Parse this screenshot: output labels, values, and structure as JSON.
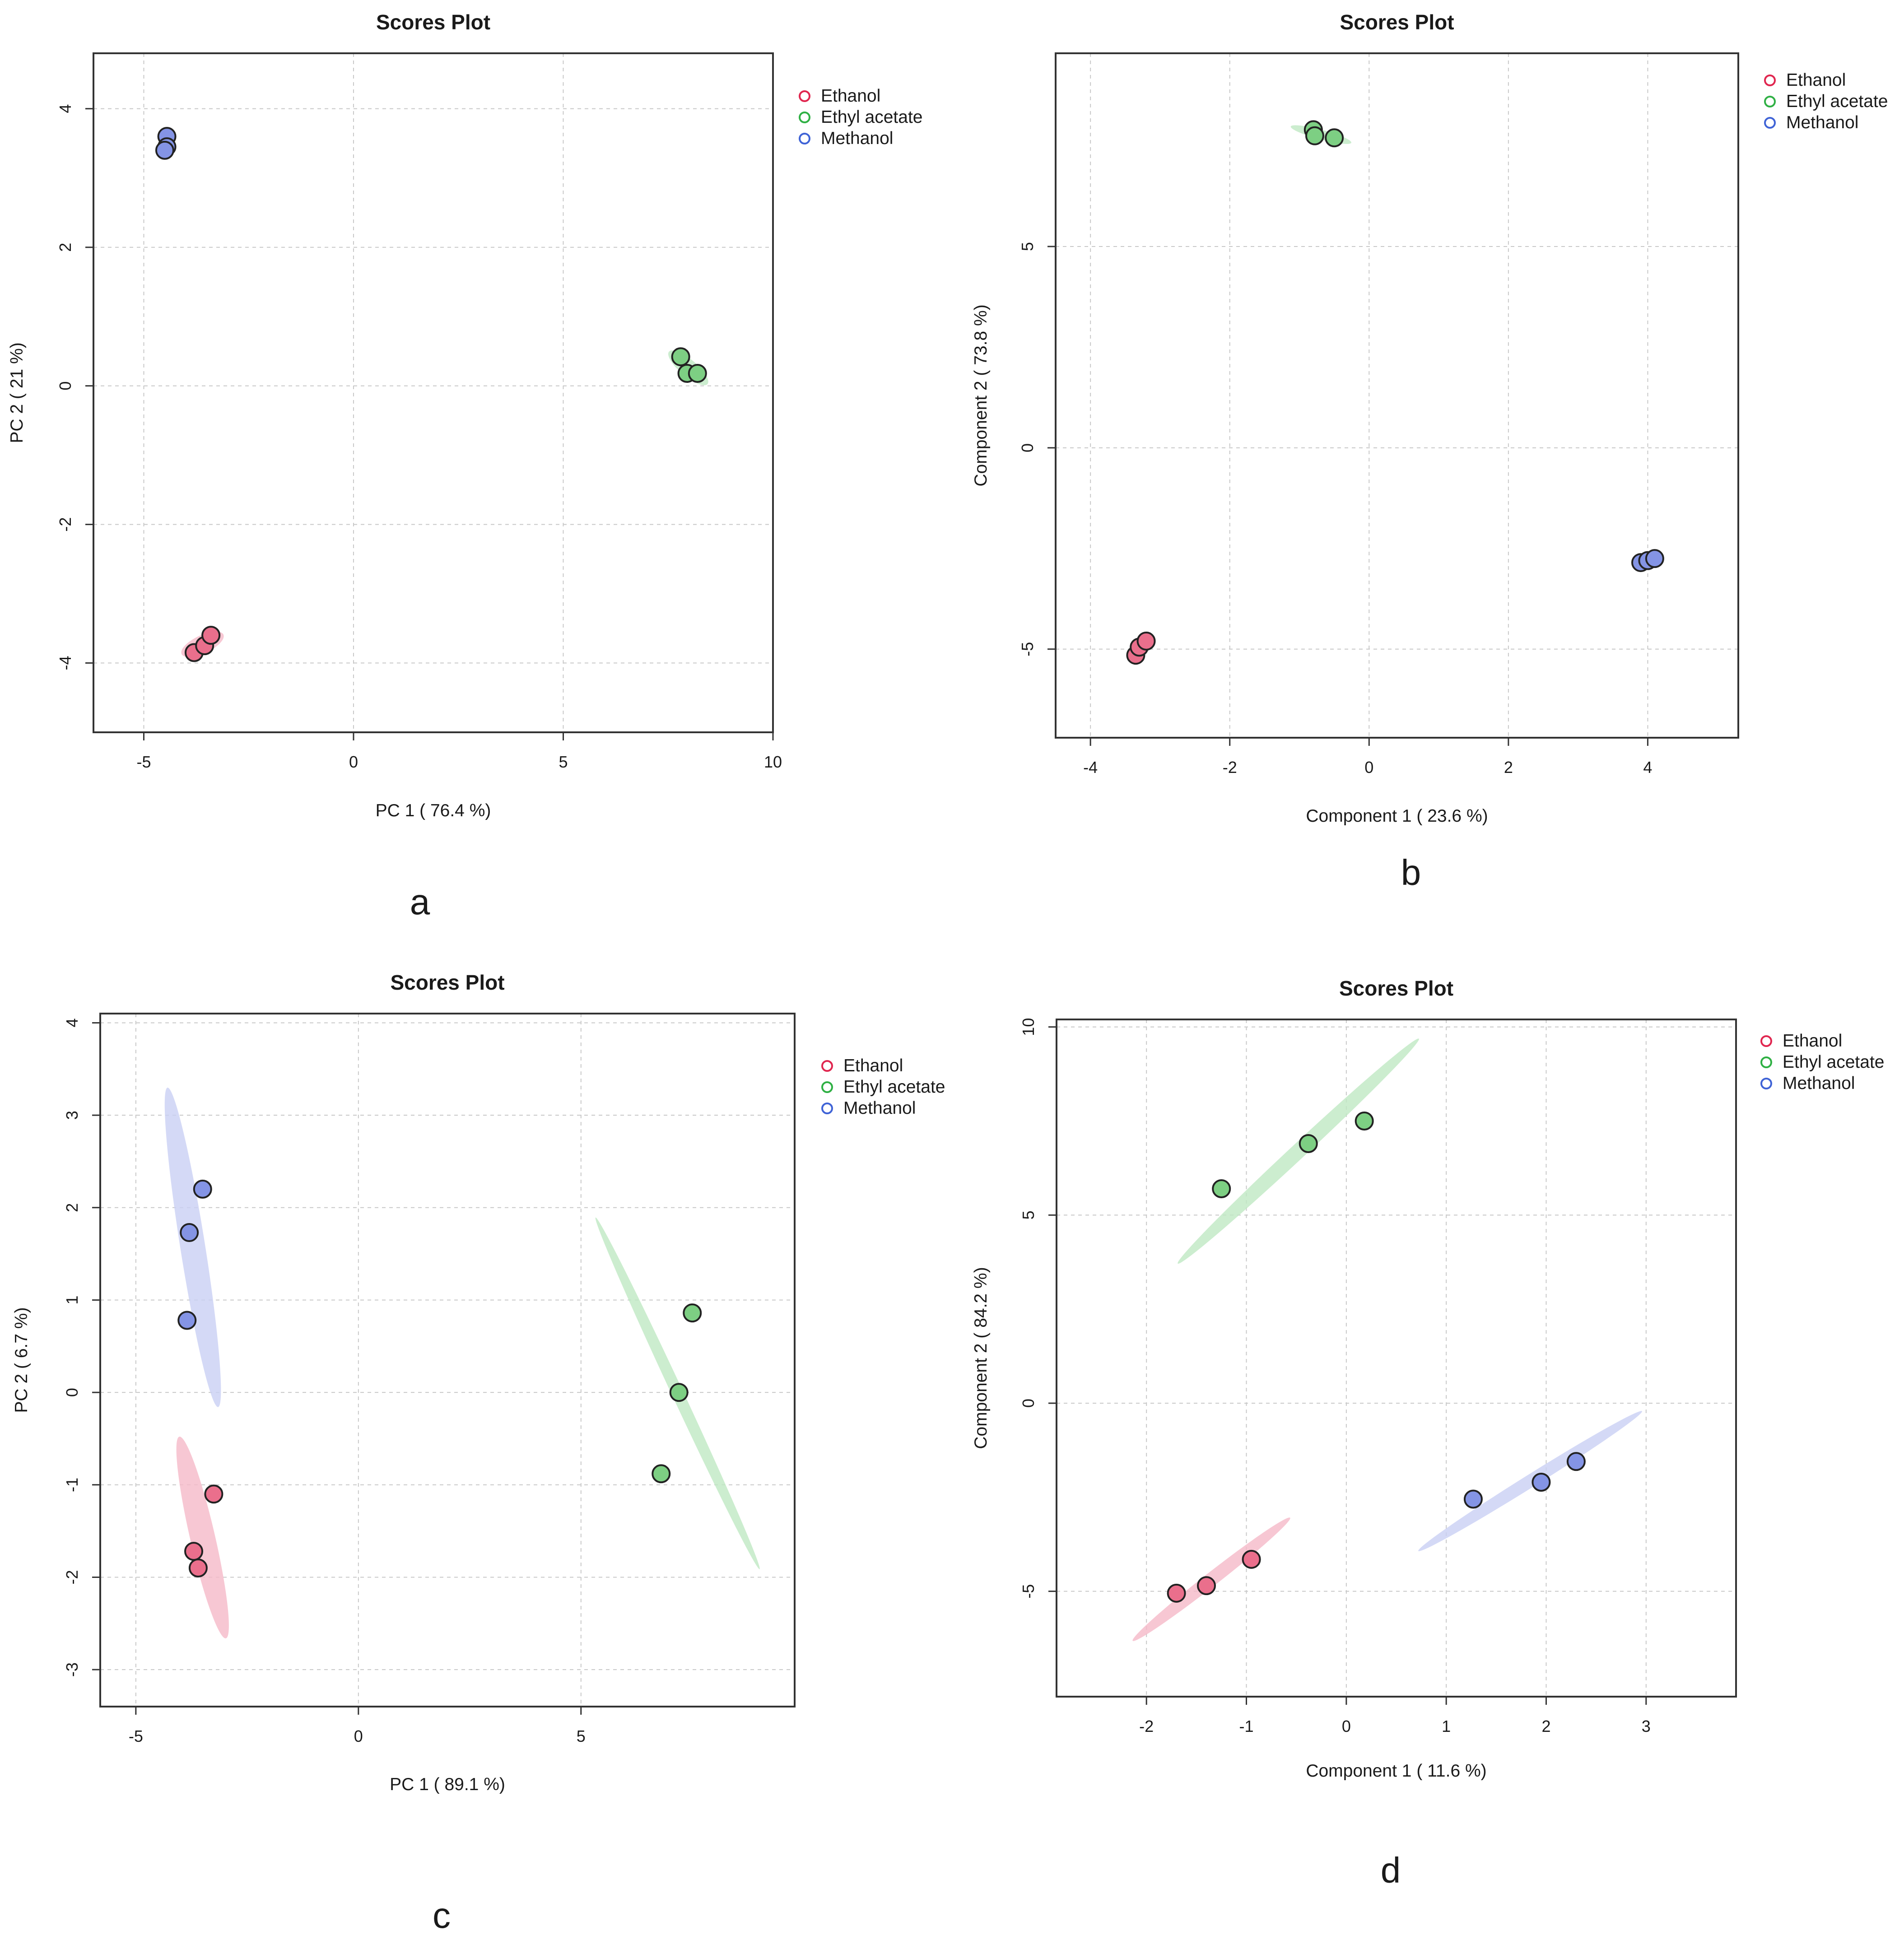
{
  "figure": {
    "panel_letters": [
      "a",
      "b",
      "c",
      "d"
    ]
  },
  "colors": {
    "Ethanol": "#ea6f8c",
    "Ethyl acetate": "#7dcf83",
    "Methanol": "#8494e5",
    "Ethanol_light": "#f5b9c8",
    "Ethyl acetate_light": "#bfe8c3",
    "Methanol_light": "#c9d0f4",
    "Ethanol_legend": "#e0264f",
    "Ethyl acetate_legend": "#2fb044",
    "Methanol_legend": "#3f63d6"
  },
  "chart_data": [
    {
      "type": "scatter",
      "title": "Scores Plot",
      "xlabel": "PC 1 ( 76.4 %)",
      "ylabel": "PC 2 ( 21 %)",
      "xlim": [
        -6.2,
        10.0
      ],
      "ylim": [
        -5.0,
        4.8
      ],
      "xticks": [
        -5,
        0,
        5,
        10
      ],
      "yticks": [
        -4,
        -2,
        0,
        2,
        4
      ],
      "legend": [
        "Ethanol",
        "Ethyl acetate",
        "Methanol"
      ],
      "legend_position": "right-top",
      "series": [
        {
          "name": "Ethanol",
          "points": [
            [
              -3.8,
              -3.85
            ],
            [
              -3.55,
              -3.75
            ],
            [
              -3.4,
              -3.6
            ]
          ],
          "ellipse": {
            "cx": -3.6,
            "cy": -3.73,
            "rx": 0.55,
            "ry": 0.13,
            "angle": 25
          }
        },
        {
          "name": "Ethyl acetate",
          "points": [
            [
              7.8,
              0.42
            ],
            [
              7.95,
              0.18
            ],
            [
              8.2,
              0.18
            ]
          ],
          "ellipse": {
            "cx": 7.98,
            "cy": 0.26,
            "rx": 0.6,
            "ry": 0.12,
            "angle": -40
          }
        },
        {
          "name": "Methanol",
          "points": [
            [
              -4.45,
              3.6
            ],
            [
              -4.45,
              3.45
            ],
            [
              -4.5,
              3.4
            ]
          ],
          "ellipse": {
            "cx": -4.47,
            "cy": 3.48,
            "rx": 0.2,
            "ry": 0.05,
            "angle": 80
          }
        }
      ]
    },
    {
      "type": "scatter",
      "title": "Scores Plot",
      "xlabel": "Component 1 ( 23.6 %)",
      "ylabel": "Component 2 ( 73.8 %)",
      "xlim": [
        -4.5,
        5.3
      ],
      "ylim": [
        -7.2,
        9.8
      ],
      "xticks": [
        -4,
        -2,
        0,
        2,
        4
      ],
      "yticks": [
        -5,
        0,
        5
      ],
      "legend": [
        "Ethanol",
        "Ethyl acetate",
        "Methanol"
      ],
      "legend_position": "right-top",
      "series": [
        {
          "name": "Ethanol",
          "points": [
            [
              -3.35,
              -5.15
            ],
            [
              -3.3,
              -4.95
            ],
            [
              -3.2,
              -4.8
            ]
          ],
          "ellipse": {
            "cx": -3.28,
            "cy": -4.97,
            "rx": 0.25,
            "ry": 0.08,
            "angle": 45
          }
        },
        {
          "name": "Ethyl acetate",
          "points": [
            [
              -0.8,
              7.9
            ],
            [
              -0.78,
              7.75
            ],
            [
              -0.5,
              7.7
            ]
          ],
          "ellipse": {
            "cx": -0.69,
            "cy": 7.78,
            "rx": 0.45,
            "ry": 0.12,
            "angle": -15
          }
        },
        {
          "name": "Methanol",
          "points": [
            [
              3.9,
              -2.85
            ],
            [
              4.0,
              -2.8
            ],
            [
              4.1,
              -2.75
            ]
          ],
          "ellipse": {
            "cx": 4.0,
            "cy": -2.8,
            "rx": 0.2,
            "ry": 0.05,
            "angle": 10
          }
        }
      ]
    },
    {
      "type": "scatter",
      "title": "Scores Plot",
      "xlabel": "PC 1 ( 89.1 %)",
      "ylabel": "PC 2 ( 6.7 %)",
      "xlim": [
        -5.8,
        9.8
      ],
      "ylim": [
        -3.4,
        4.1
      ],
      "xticks": [
        -5,
        0,
        5
      ],
      "yticks": [
        -3,
        -2,
        -1,
        0,
        1,
        2,
        3,
        4
      ],
      "legend": [
        "Ethanol",
        "Ethyl acetate",
        "Methanol"
      ],
      "legend_position": "right-top",
      "series": [
        {
          "name": "Ethanol",
          "points": [
            [
              -3.25,
              -1.1
            ],
            [
              -3.7,
              -1.72
            ],
            [
              -3.6,
              -1.9
            ]
          ],
          "ellipse": {
            "cx": -3.5,
            "cy": -1.57,
            "rx": 0.28,
            "ry": 1.12,
            "angle": 13
          }
        },
        {
          "name": "Ethyl acetate",
          "points": [
            [
              7.5,
              0.86
            ],
            [
              7.2,
              0.0
            ],
            [
              6.8,
              -0.88
            ]
          ],
          "ellipse": {
            "cx": 7.17,
            "cy": -0.01,
            "rx": 0.13,
            "ry": 2.1,
            "angle": 25
          }
        },
        {
          "name": "Methanol",
          "points": [
            [
              -3.5,
              2.2
            ],
            [
              -3.8,
              1.73
            ],
            [
              -3.85,
              0.78
            ]
          ],
          "ellipse": {
            "cx": -3.72,
            "cy": 1.57,
            "rx": 0.28,
            "ry": 1.75,
            "angle": 9
          }
        }
      ]
    },
    {
      "type": "scatter",
      "title": "Scores Plot",
      "xlabel": "Component 1 ( 11.6 %)",
      "ylabel": "Component 2 ( 84.2 %)",
      "xlim": [
        -2.9,
        3.9
      ],
      "ylim": [
        -7.8,
        10.2
      ],
      "xticks": [
        -2,
        -1,
        0,
        1,
        2,
        3
      ],
      "yticks": [
        -5,
        0,
        5,
        10
      ],
      "legend": [
        "Ethanol",
        "Ethyl acetate",
        "Methanol"
      ],
      "legend_position": "right-top",
      "series": [
        {
          "name": "Ethanol",
          "points": [
            [
              -1.7,
              -5.05
            ],
            [
              -1.4,
              -4.85
            ],
            [
              -0.95,
              -4.15
            ]
          ],
          "ellipse": {
            "cx": -1.35,
            "cy": -4.68,
            "rx": 1.0,
            "ry": 0.18,
            "angle": 38
          }
        },
        {
          "name": "Ethyl acetate",
          "points": [
            [
              -1.25,
              5.7
            ],
            [
              -0.38,
              6.9
            ],
            [
              0.18,
              7.5
            ]
          ],
          "ellipse": {
            "cx": -0.48,
            "cy": 6.7,
            "rx": 1.65,
            "ry": 0.2,
            "angle": 43
          }
        },
        {
          "name": "Methanol",
          "points": [
            [
              1.27,
              -2.55
            ],
            [
              1.95,
              -2.1
            ],
            [
              2.3,
              -1.55
            ]
          ],
          "ellipse": {
            "cx": 1.84,
            "cy": -2.07,
            "rx": 1.32,
            "ry": 0.17,
            "angle": 32
          }
        }
      ]
    }
  ]
}
